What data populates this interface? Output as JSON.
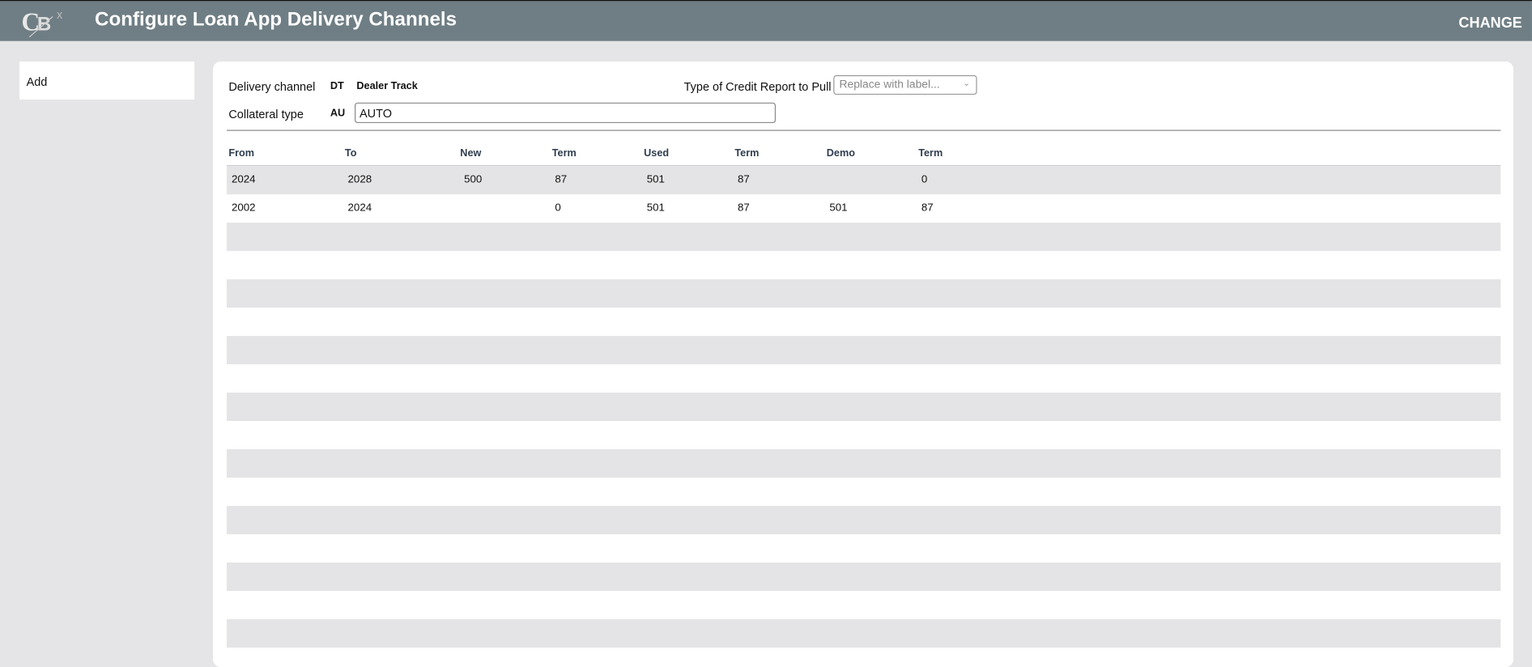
{
  "header": {
    "title": "Configure Loan App Delivery Channels",
    "action": "CHANGE",
    "logo_text": "CBX"
  },
  "sidebar": {
    "items": [
      {
        "label": "Add"
      }
    ]
  },
  "form": {
    "delivery_channel_label": "Delivery channel",
    "delivery_channel_code": "DT",
    "delivery_channel_name": "Dealer Track",
    "credit_report_label": "Type of Credit Report to Pull",
    "credit_report_placeholder": "Replace with label...",
    "collateral_label": "Collateral type",
    "collateral_code": "AU",
    "collateral_value": "AUTO"
  },
  "table": {
    "columns": [
      "From",
      "To",
      "New",
      "Term",
      "Used",
      "Term",
      "Demo",
      "Term"
    ],
    "rows": [
      [
        "2024",
        "2028",
        "500",
        "87",
        "501",
        "87",
        "",
        "0"
      ],
      [
        "2002",
        "2024",
        "",
        "0",
        "501",
        "87",
        "501",
        "87"
      ]
    ]
  },
  "colors": {
    "header": "#6f7e84",
    "background": "#e5e5e7",
    "stripe": "#e4e4e6"
  }
}
